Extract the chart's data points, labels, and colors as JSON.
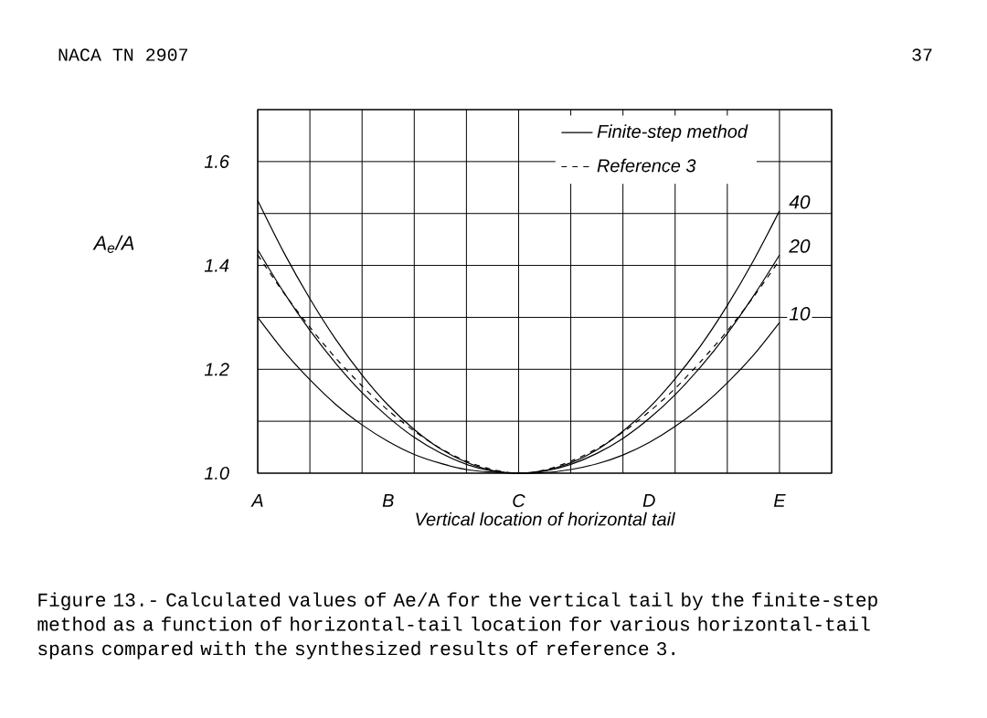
{
  "chart_data": {
    "type": "line",
    "title": "Figure 13.- Calculated values of  Ae/A  for the vertical tail by the finite-step method as a function of horizontal-tail location for various horizontal-tail spans compared with the synthesized results of reference 3.",
    "xlabel": "Vertical location of horizontal tail",
    "ylabel": "A$_{e}$/A",
    "annotations": [
      "NACA TN 2907",
      "37",
      "Finite-step method"
    ],
    "categories": [
      "A",
      null,
      null,
      null,
      null,
      "B",
      null,
      null,
      null,
      null,
      "C",
      null,
      null,
      null,
      null,
      "D",
      null,
      null,
      null,
      null,
      "E",
      null,
      null
    ],
    "series": [
      {
        "name": "40",
        "color": "#000000",
        "line_style": "solid",
        "values": [
          1.525,
          1.425,
          1.336,
          1.257,
          1.189,
          1.131,
          1.084,
          1.047,
          1.021,
          1.005,
          1.0,
          1.005,
          1.02,
          1.045,
          1.081,
          1.126,
          1.182,
          1.247,
          1.323,
          1.409,
          1.505,
          null,
          null
        ]
      },
      {
        "name": "20",
        "color": "#000000",
        "line_style": "solid",
        "values": [
          1.43,
          1.348,
          1.275,
          1.211,
          1.155,
          1.108,
          1.069,
          1.039,
          1.017,
          1.004,
          1.0,
          1.004,
          1.017,
          1.038,
          1.067,
          1.105,
          1.151,
          1.206,
          1.269,
          1.341,
          1.42,
          null,
          null
        ]
      },
      {
        "name": "10",
        "color": "#000000",
        "line_style": "solid",
        "values": [
          1.3,
          1.235,
          1.18,
          1.132,
          1.093,
          1.061,
          1.036,
          1.019,
          1.007,
          1.002,
          1.0,
          1.001,
          1.007,
          1.018,
          1.035,
          1.059,
          1.09,
          1.128,
          1.174,
          1.227,
          1.29,
          null,
          null
        ]
      },
      {
        "name": "Reference 3",
        "color": "#000000",
        "line_style": "dashed",
        "values": [
          1.42,
          1.347,
          1.281,
          1.221,
          1.168,
          1.121,
          1.081,
          1.048,
          1.023,
          1.007,
          1.0,
          1.006,
          1.023,
          1.047,
          1.079,
          1.118,
          1.163,
          1.216,
          1.274,
          1.339,
          1.41,
          null,
          null
        ]
      }
    ],
    "ylim": [
      1.0,
      1.7
    ],
    "yticks": [
      {
        "value": 1.0,
        "label": "1.0"
      },
      {
        "value": 1.1,
        "label": null
      },
      {
        "value": 1.2,
        "label": "1.2"
      },
      {
        "value": 1.3,
        "label": null
      },
      {
        "value": 1.4,
        "label": "1.4"
      },
      {
        "value": 1.5,
        "label": null
      },
      {
        "value": 1.6,
        "label": "1.6"
      },
      {
        "value": 1.7,
        "label": null
      }
    ],
    "grid": true,
    "legend": "top right"
  }
}
